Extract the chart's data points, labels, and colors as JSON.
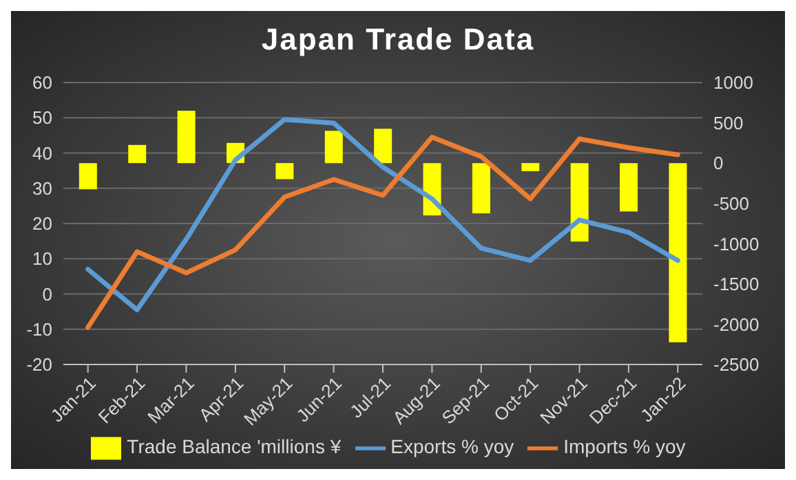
{
  "chart_data": {
    "type": "bar",
    "title": "Japan Trade Data",
    "categories": [
      "Jan-21",
      "Feb-21",
      "Mar-21",
      "Apr-21",
      "May-21",
      "Jun-21",
      "Jul-21",
      "Aug-21",
      "Sep-21",
      "Oct-21",
      "Nov-21",
      "Dec-21",
      "Jan-22"
    ],
    "series": [
      {
        "name": "Trade Balance 'millions ¥",
        "axis": "y2",
        "color": "#ffff00",
        "values": [
          -325,
          225,
          650,
          250,
          -200,
          400,
          425,
          -650,
          -625,
          -100,
          -975,
          -600,
          -2225
        ]
      },
      {
        "name": "Exports  % yoy",
        "type": "line",
        "color": "#5b9bd5",
        "values": [
          7,
          -4.5,
          15.5,
          38,
          49.5,
          48.5,
          36,
          27,
          13,
          9.5,
          21,
          17.5,
          9.5
        ]
      },
      {
        "name": "Imports % yoy",
        "type": "line",
        "color": "#ed7d31",
        "values": [
          -9.5,
          12,
          6,
          12.5,
          27.5,
          32.5,
          28,
          44.5,
          39,
          27,
          44,
          41.5,
          39.5
        ]
      }
    ],
    "ylim": [
      -20,
      60
    ],
    "yticks": [
      -20,
      -10,
      0,
      10,
      20,
      30,
      40,
      50,
      60
    ],
    "y2lim": [
      -2500,
      1000
    ],
    "y2ticks": [
      -2500,
      -2000,
      -1500,
      -1000,
      -500,
      0,
      500,
      1000
    ],
    "grid": "y",
    "legend": "bottom",
    "marker": "none",
    "line_style": "solid"
  }
}
